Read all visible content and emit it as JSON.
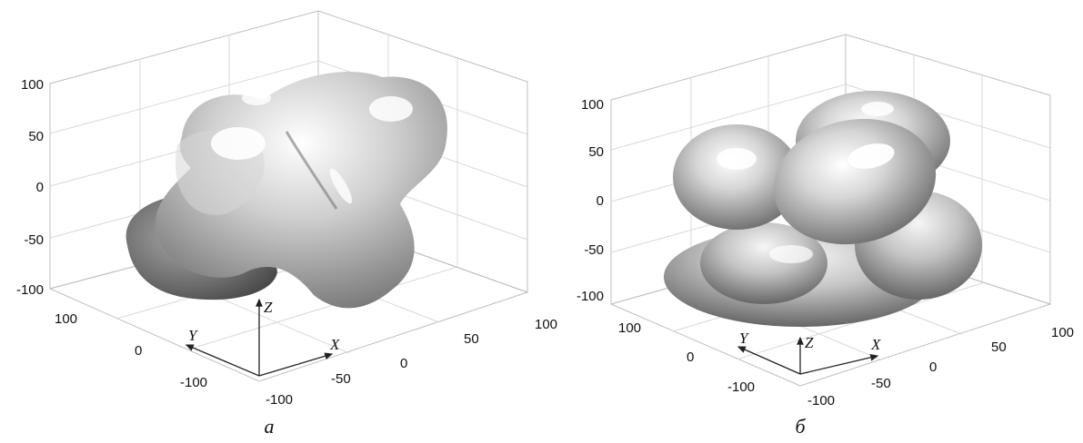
{
  "panels": [
    {
      "caption": "а",
      "z_ticks": [
        "100",
        "50",
        "0",
        "-50",
        "-100"
      ],
      "y_ticks": [
        "100",
        "0",
        "-100"
      ],
      "x_ticks": [
        "-100",
        "-50",
        "0",
        "50",
        "100"
      ],
      "axis_labels": {
        "x": "X",
        "y": "Y",
        "z": "Z"
      }
    },
    {
      "caption": "б",
      "z_ticks": [
        "100",
        "50",
        "0",
        "-50",
        "-100"
      ],
      "y_ticks": [
        "100",
        "0",
        "-100"
      ],
      "x_ticks": [
        "-100",
        "-50",
        "0",
        "50",
        "100"
      ],
      "axis_labels": {
        "x": "X",
        "y": "Y",
        "z": "Z"
      }
    }
  ],
  "colors": {
    "surface_light": "#ffffff",
    "surface_mid": "#bdbdbd",
    "surface_dark": "#4a4a4a",
    "grid": "#d9d9d9"
  }
}
